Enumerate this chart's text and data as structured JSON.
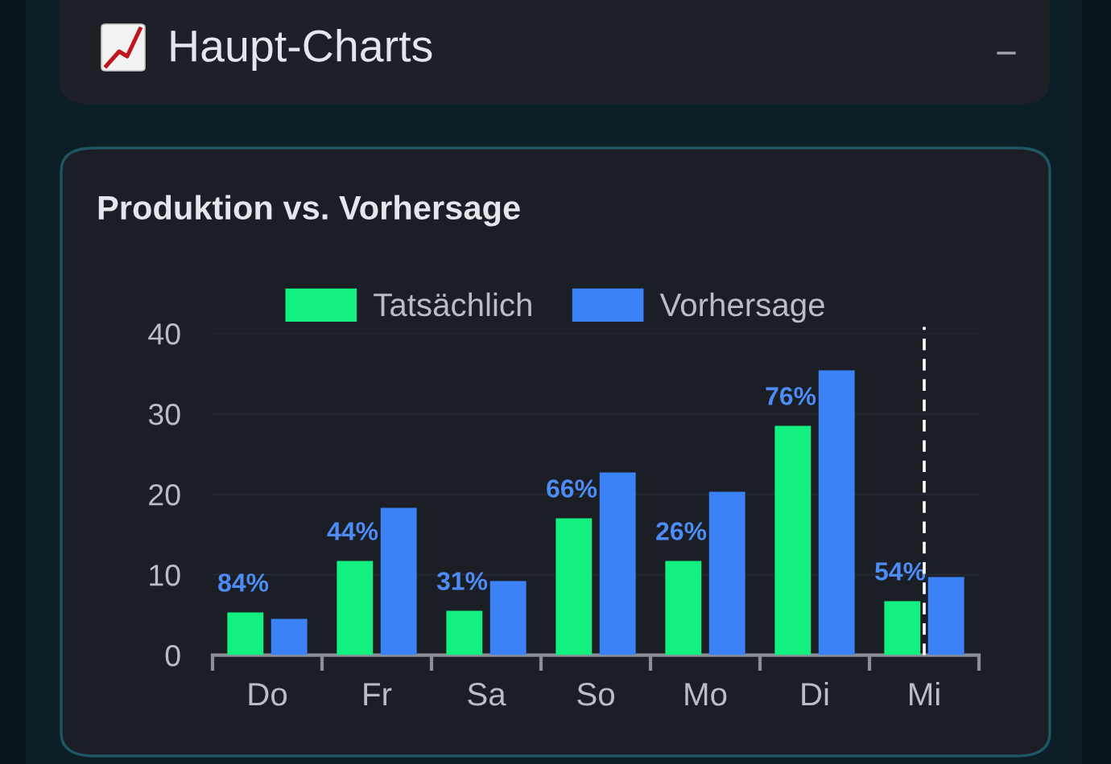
{
  "chart_data": {
    "type": "bar",
    "title": "Haupt-Charts",
    "subtitle": "Produktion vs. Vorhersage",
    "categories": [
      "Do",
      "Fr",
      "Sa",
      "So",
      "Mo",
      "Di",
      "Mi"
    ],
    "series": [
      {
        "name": "Tatsächlich",
        "color": "#12f07f",
        "values": [
          5.3,
          11.7,
          5.5,
          17.0,
          11.7,
          28.5,
          6.7
        ]
      },
      {
        "name": "Vorhersage",
        "color": "#3b82f6",
        "values": [
          4.5,
          18.3,
          9.2,
          22.7,
          20.3,
          35.4,
          9.7
        ]
      }
    ],
    "annotations": [
      {
        "text": "84%",
        "x": "Do",
        "y": 5.3
      },
      {
        "text": "44%",
        "x": "Fr",
        "y": 11.7
      },
      {
        "text": "31%",
        "x": "Sa",
        "y": 5.5
      },
      {
        "text": "66%",
        "x": "So",
        "y": 17.0
      },
      {
        "text": "26%",
        "x": "Mo",
        "y": 11.7
      },
      {
        "text": "76%",
        "x": "Di",
        "y": 28.5
      },
      {
        "text": "54%",
        "x": "Mi",
        "y": 6.7
      }
    ],
    "ylim": [
      0,
      40
    ],
    "yticks": [
      0,
      10,
      20,
      30,
      40
    ],
    "grid": "y",
    "legend": "top",
    "ref_lines": [
      {
        "axis": "x",
        "value": "Mi",
        "color": "#ffffff",
        "line_style": "dashed"
      }
    ]
  }
}
